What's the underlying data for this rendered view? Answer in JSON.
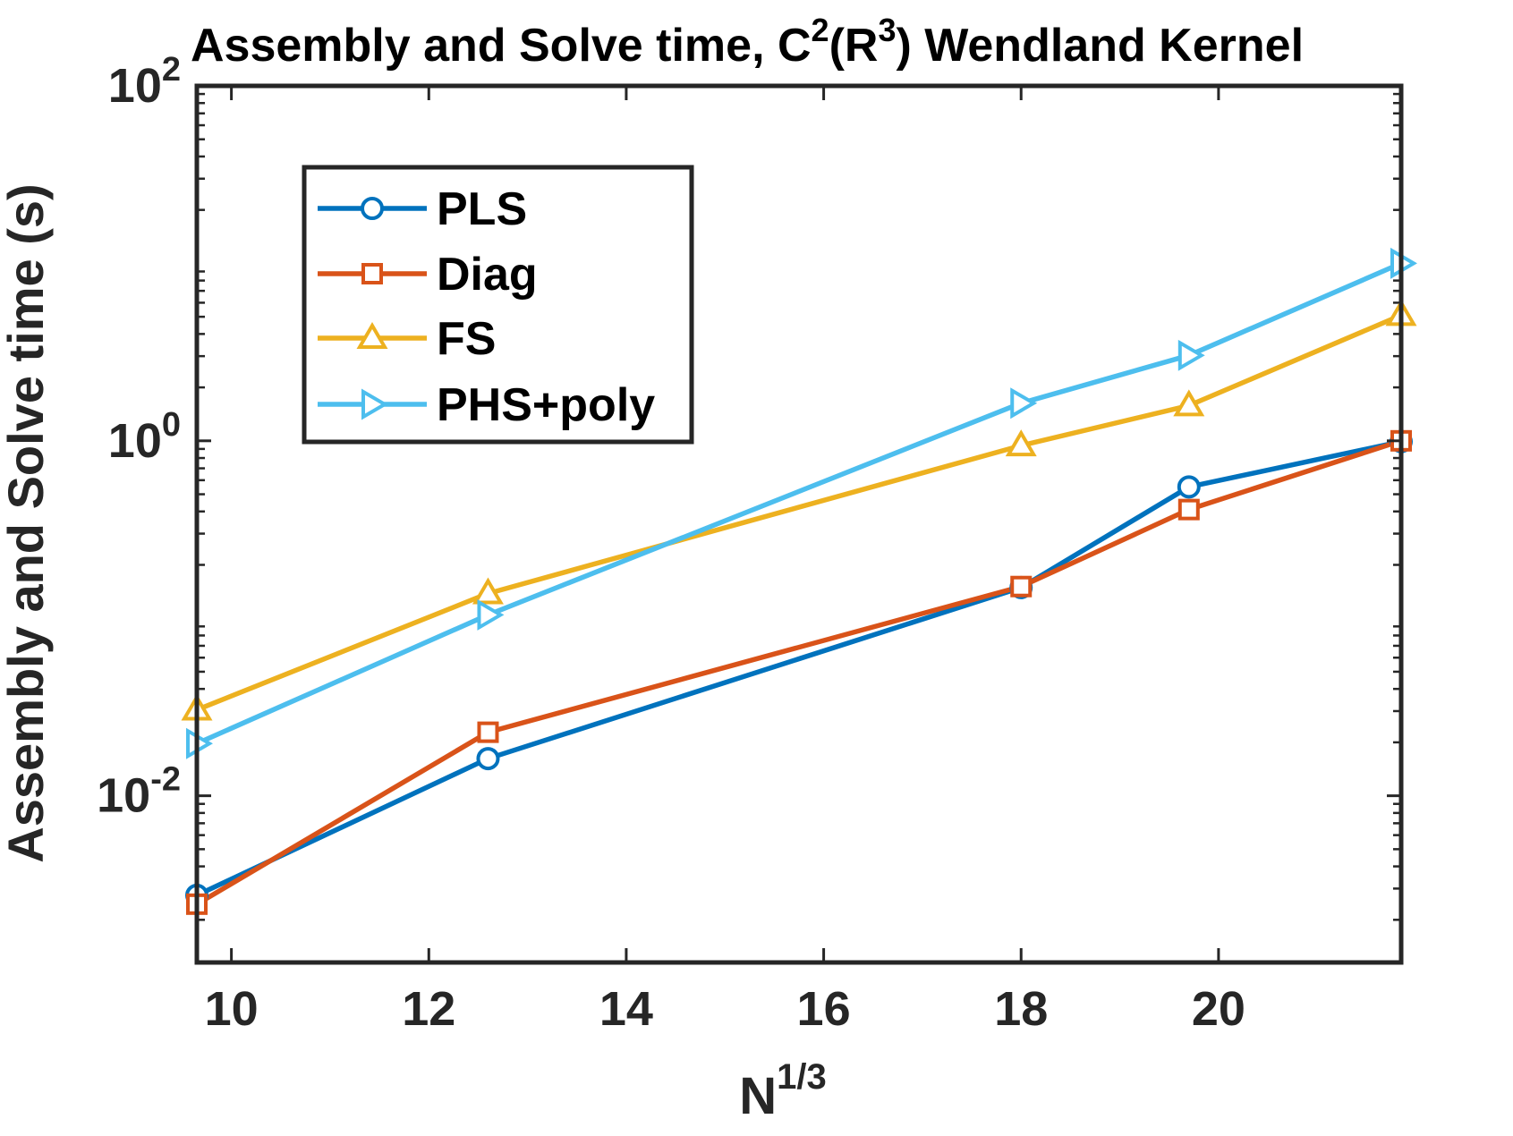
{
  "chart_data": {
    "type": "line",
    "title": {
      "prefix": "Assembly and Solve time, C",
      "sup1": "2",
      "mid": "(R",
      "sup2": "3",
      "suffix": ") Wendland Kernel"
    },
    "xlabel": {
      "base": "N",
      "sup": "1/3"
    },
    "ylabel": "Assembly and Solve time (s)",
    "xscale": "linear",
    "yscale": "log",
    "xlim": [
      9.65,
      21.85
    ],
    "ylim": [
      0.00115,
      100
    ],
    "xticks": [
      10,
      12,
      14,
      16,
      18,
      20
    ],
    "xtick_labels": [
      "10",
      "12",
      "14",
      "16",
      "18",
      "20"
    ],
    "yticks": [
      {
        "value": 0.01,
        "base": "10",
        "exp": "-2"
      },
      {
        "value": 1,
        "base": "10",
        "exp": "0"
      },
      {
        "value": 100,
        "base": "10",
        "exp": "2"
      }
    ],
    "legend_location": "top-left",
    "series": [
      {
        "name": "PLS",
        "color": "#0072BD",
        "marker": "circle",
        "x": [
          9.65,
          12.6,
          18.0,
          19.7,
          21.85
        ],
        "y": [
          0.00275,
          0.0162,
          0.149,
          0.55,
          0.99
        ]
      },
      {
        "name": "Diag",
        "color": "#D95319",
        "marker": "square",
        "x": [
          9.65,
          12.6,
          18.0,
          19.7,
          21.85
        ],
        "y": [
          0.00245,
          0.0228,
          0.151,
          0.41,
          1.0
        ]
      },
      {
        "name": "FS",
        "color": "#EDB120",
        "marker": "triangle-up",
        "x": [
          9.65,
          12.6,
          18.0,
          19.7,
          21.85
        ],
        "y": [
          0.0305,
          0.138,
          0.94,
          1.58,
          5.1
        ]
      },
      {
        "name": "PHS+poly",
        "color": "#4DBEEE",
        "marker": "triangle-right",
        "x": [
          9.65,
          12.6,
          18.0,
          19.7,
          21.85
        ],
        "y": [
          0.0197,
          0.1045,
          1.63,
          3.03,
          10.0
        ]
      }
    ]
  }
}
